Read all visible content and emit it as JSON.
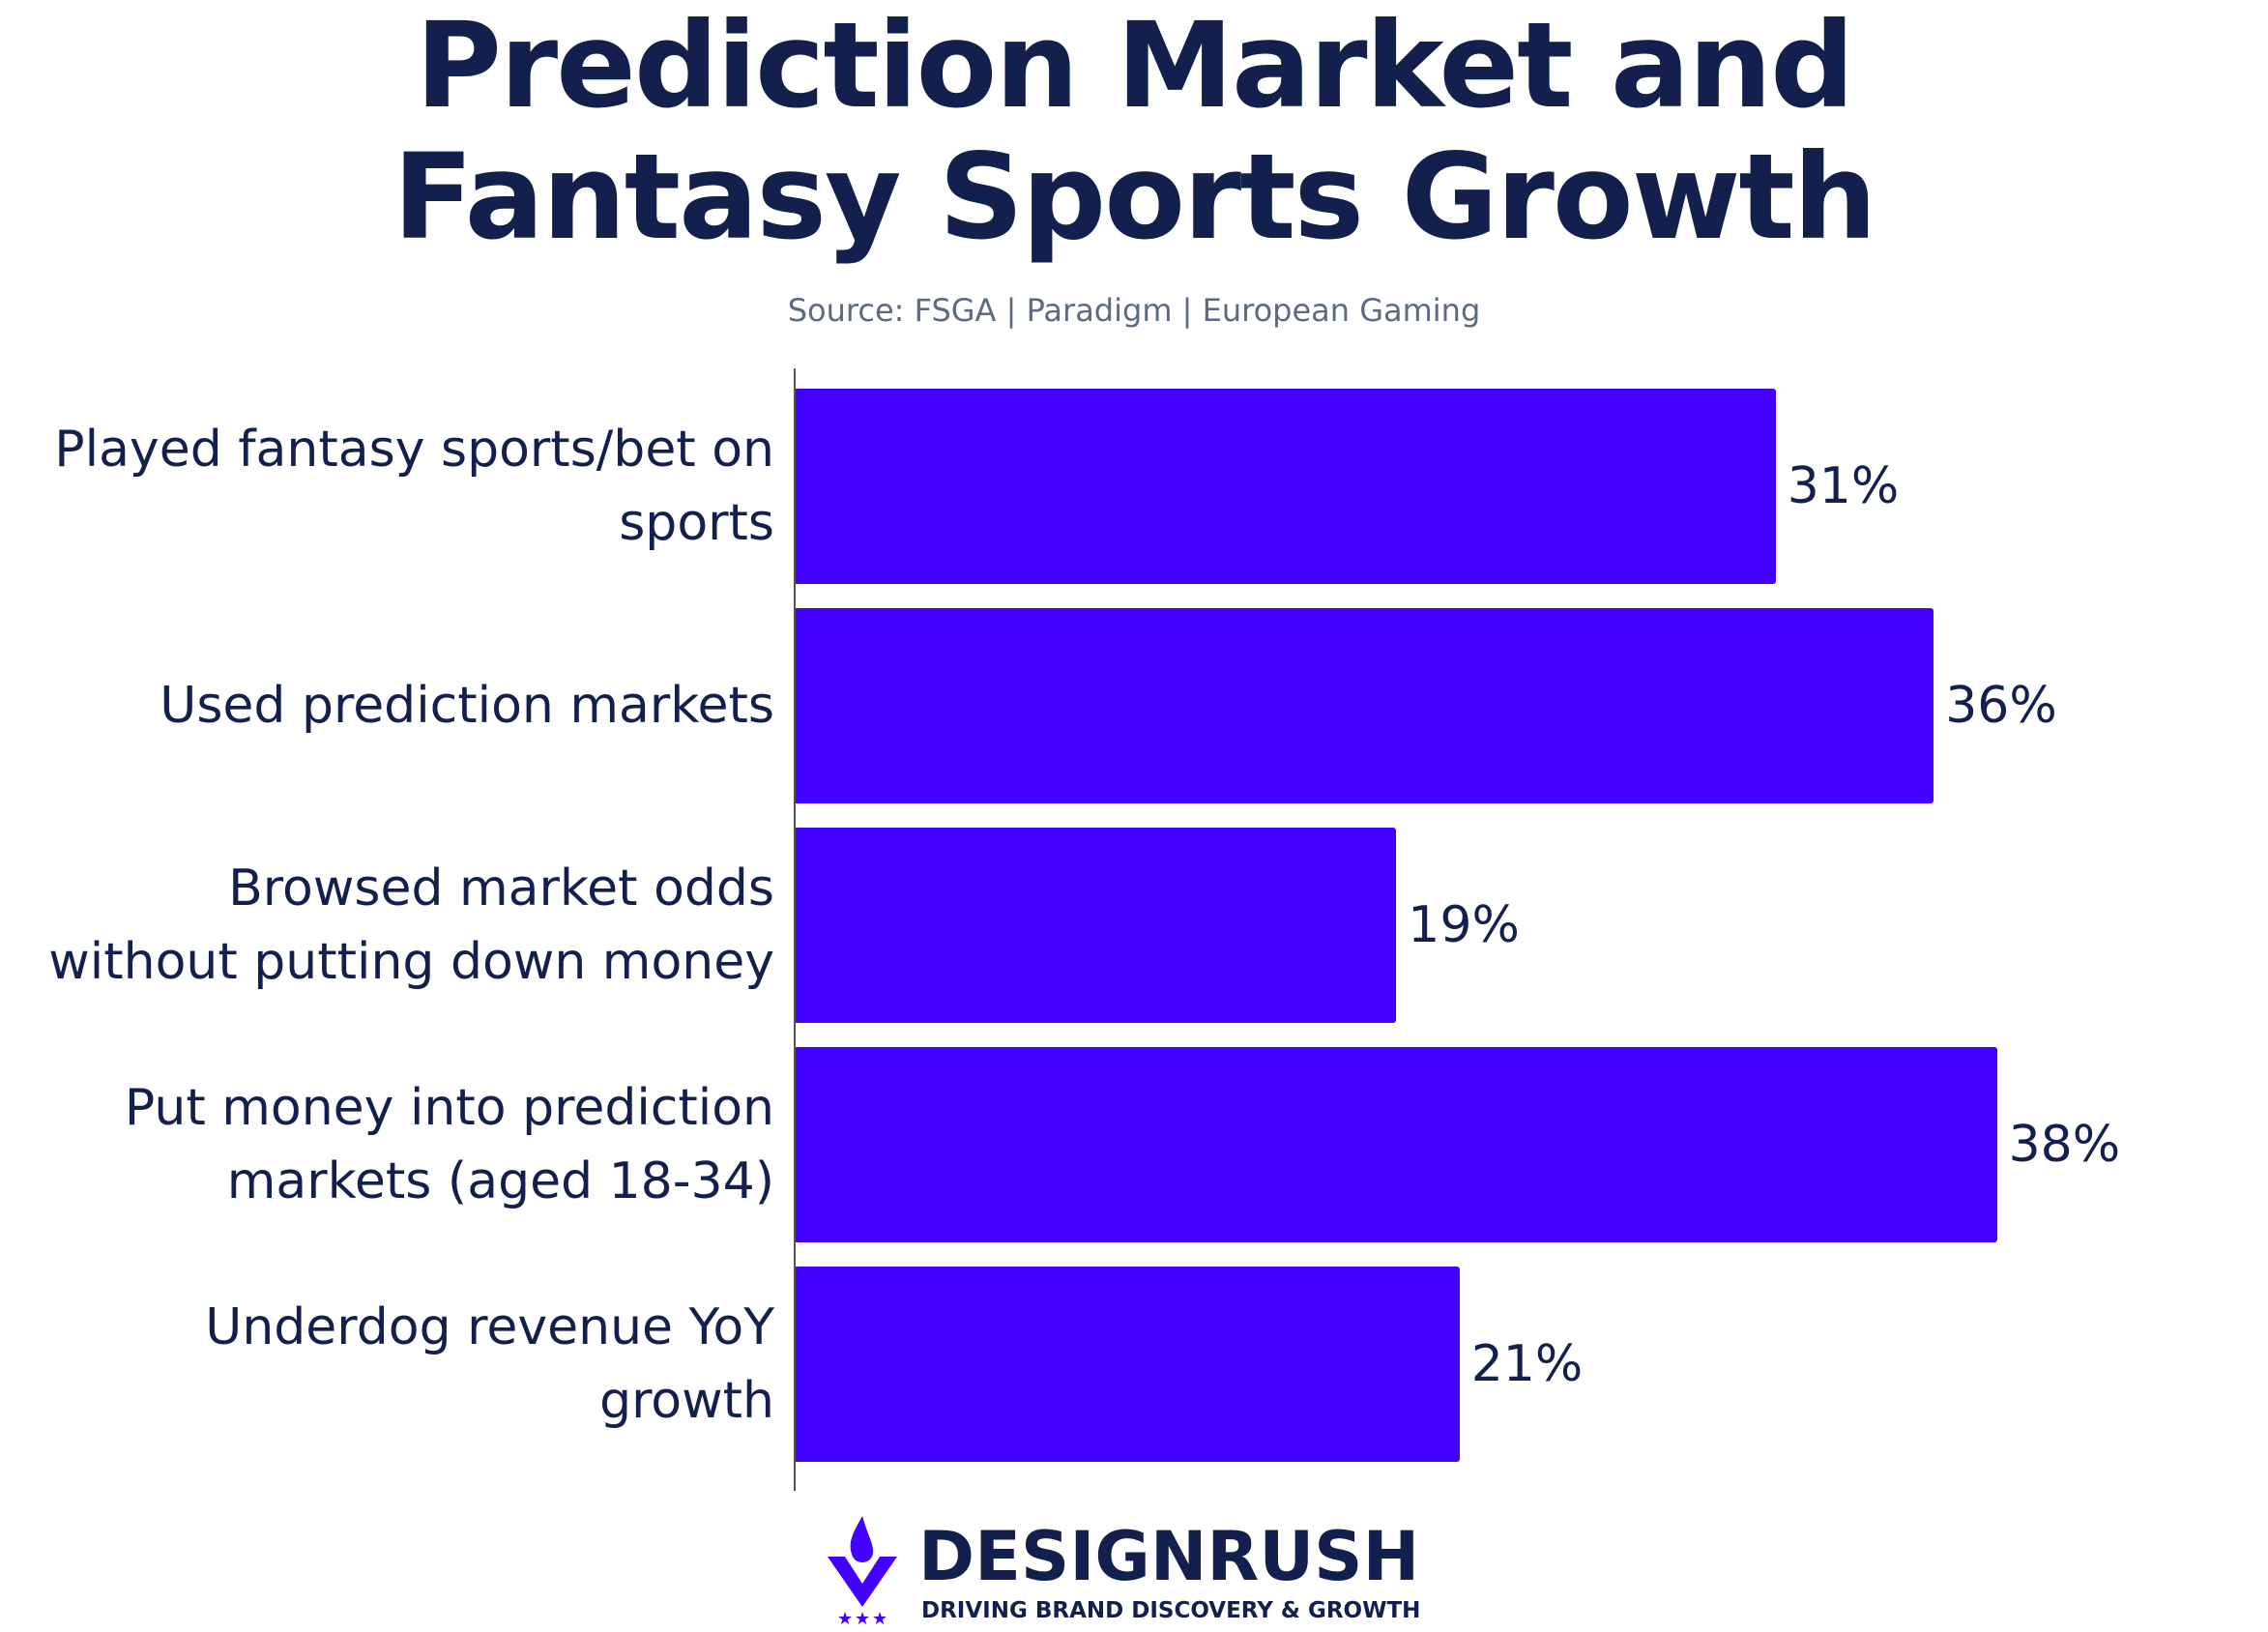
{
  "chart_data": {
    "type": "bar",
    "orientation": "horizontal",
    "title": "Prediction Market and Fantasy Sports Growth",
    "subtitle": "Source: FSGA | Paradigm | European Gaming",
    "categories": [
      "Played fantasy sports/bet on sports",
      "Used prediction markets",
      "Browsed market odds without putting down money",
      "Put money into prediction markets (aged 18-34)",
      "Underdog revenue YoY growth"
    ],
    "values": [
      31,
      36,
      19,
      38,
      21
    ],
    "value_labels": [
      "31%",
      "36%",
      "19%",
      "38%",
      "21%"
    ],
    "color": "#4200ff"
  },
  "footer": {
    "brand": "DESIGNRUSH",
    "tagline": "DRIVING BRAND DISCOVERY & GROWTH"
  }
}
